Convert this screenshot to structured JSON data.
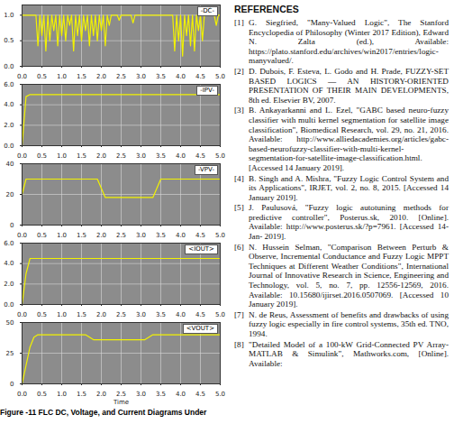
{
  "chart_data": [
    {
      "type": "line",
      "x": [
        0,
        0.05,
        0.1,
        0.15,
        0.2,
        0.25,
        0.3,
        0.35,
        0.4,
        0.45,
        0.5,
        0.55,
        0.6,
        0.65,
        0.7,
        0.75,
        0.8,
        0.85,
        0.9,
        0.95,
        1,
        1.05,
        1.1,
        1.15,
        1.2,
        1.25,
        1.3,
        1.35,
        1.4,
        1.45,
        1.5,
        1.55,
        1.6,
        1.65,
        1.7,
        1.75,
        1.8,
        1.85,
        1.9,
        1.95,
        2,
        2.05,
        2.1,
        2.15,
        2.2,
        2.25,
        2.3,
        2.35,
        2.4,
        2.45,
        2.5,
        2.55,
        2.6,
        2.65,
        2.7,
        2.75,
        2.8,
        2.85,
        2.9,
        2.95,
        3,
        3.05,
        3.1,
        3.15,
        3.2,
        3.25,
        3.3,
        3.35,
        3.4,
        3.45,
        3.5,
        3.55,
        3.6,
        3.65,
        3.7,
        3.75,
        3.8,
        3.85,
        3.9,
        3.95,
        4,
        4.05,
        4.1,
        4.15,
        4.2,
        4.25,
        4.3,
        4.35,
        4.4,
        4.45,
        4.5,
        4.55,
        4.6,
        4.65,
        4.7,
        4.75,
        4.8,
        4.85,
        4.9,
        4.95,
        5
      ],
      "series": [
        {
          "name": "-DC-",
          "color": "#f2f200",
          "values": [
            1,
            1,
            1,
            1,
            1,
            1,
            1,
            1,
            0.4,
            1,
            0.6,
            1,
            0.3,
            1,
            0.5,
            1,
            0.7,
            1,
            0.4,
            1,
            0.6,
            1,
            0.5,
            1,
            0.8,
            1,
            0.3,
            1,
            0.6,
            1,
            0.5,
            1,
            0.7,
            1,
            0.4,
            1,
            0.6,
            1,
            0.5,
            1,
            0.7,
            1,
            0.4,
            1,
            0.8,
            1,
            1,
            1,
            1,
            0.9,
            1,
            1,
            1,
            1,
            1,
            1,
            0.85,
            1,
            1,
            1,
            1,
            1,
            1,
            1,
            1,
            1,
            1,
            1,
            1,
            1,
            1,
            1,
            1,
            1,
            1,
            1,
            1,
            0.3,
            1,
            0.5,
            1,
            0.2,
            1,
            0.6,
            1,
            0.4,
            1,
            0.3,
            1,
            0.7,
            1,
            0.5,
            1,
            1,
            1,
            1,
            1,
            1,
            0.8,
            1,
            1
          ]
        }
      ],
      "xlim": [
        0,
        5
      ],
      "xticks": [
        0,
        0.5,
        1,
        1.5,
        2,
        2.5,
        3,
        3.5,
        4,
        4.5,
        5
      ],
      "ylim": [
        0,
        1.2
      ],
      "yticks": [
        0,
        0.5,
        1
      ],
      "grid": true
    },
    {
      "type": "line",
      "x": [
        0,
        0.1,
        0.2,
        0.3,
        0.4,
        0.5,
        0.6,
        0.7,
        0.8,
        0.9,
        1,
        1.1,
        1.2,
        1.3,
        1.4,
        1.5,
        1.6,
        1.7,
        1.8,
        1.9,
        2,
        2.1,
        2.2,
        2.3,
        2.4,
        2.5,
        2.6,
        2.7,
        2.8,
        2.9,
        3,
        3.1,
        3.2,
        3.3,
        3.4,
        3.5,
        3.6,
        3.7,
        3.8,
        3.9,
        4,
        4.1,
        4.2,
        4.3,
        4.4,
        4.5,
        4.6,
        4.7,
        4.8,
        4.9,
        5
      ],
      "series": [
        {
          "name": "-IPV-",
          "color": "#f2f200",
          "values": [
            0,
            4.8,
            5,
            5,
            5,
            5,
            5,
            5,
            5,
            5,
            5,
            5,
            5,
            5,
            5,
            5,
            5,
            5,
            5,
            5,
            5,
            5,
            5,
            5,
            5,
            5,
            5,
            5,
            5,
            5,
            5,
            5,
            5,
            5,
            5,
            5,
            5,
            5,
            5,
            5,
            5,
            5,
            5,
            5,
            5,
            5,
            5,
            5,
            5,
            5,
            5
          ]
        }
      ],
      "xlim": [
        0,
        5
      ],
      "xticks": [
        0,
        0.5,
        1,
        1.5,
        2,
        2.5,
        3,
        3.5,
        4,
        4.5,
        5
      ],
      "ylim": [
        0,
        6
      ],
      "yticks": [
        0,
        2,
        4,
        6
      ],
      "grid": true
    },
    {
      "type": "line",
      "x": [
        0,
        0.1,
        0.2,
        0.3,
        0.4,
        0.5,
        0.6,
        0.7,
        0.8,
        0.9,
        1,
        1.1,
        1.2,
        1.3,
        1.4,
        1.5,
        1.6,
        1.7,
        1.8,
        1.9,
        2,
        2.1,
        2.2,
        2.3,
        2.4,
        2.5,
        2.6,
        2.7,
        2.8,
        2.9,
        3,
        3.1,
        3.2,
        3.3,
        3.4,
        3.5,
        3.6,
        3.7,
        3.8,
        3.9,
        4,
        4.1,
        4.2,
        4.3,
        4.4,
        4.5,
        4.6,
        4.7,
        4.8,
        4.9,
        5
      ],
      "series": [
        {
          "name": "-VPV-",
          "color": "#f2f200",
          "values": [
            20,
            30,
            30,
            30,
            30,
            30,
            30,
            30,
            30,
            30,
            30,
            30,
            30,
            30,
            30,
            30,
            30,
            30,
            30,
            30,
            24,
            18,
            18,
            18,
            18,
            18,
            18,
            18,
            18,
            18,
            18,
            18,
            18,
            18,
            24,
            30,
            30,
            30,
            30,
            30,
            30,
            30,
            30,
            30,
            30,
            30,
            30,
            30,
            30,
            30,
            30
          ]
        }
      ],
      "xlim": [
        0,
        5
      ],
      "xticks": [
        0,
        0.5,
        1,
        1.5,
        2,
        2.5,
        3,
        3.5,
        4,
        4.5,
        5
      ],
      "ylim": [
        0,
        40
      ],
      "yticks": [
        0,
        20,
        40
      ],
      "grid": true
    },
    {
      "type": "line",
      "x": [
        0,
        0.1,
        0.2,
        0.3,
        0.4,
        0.5,
        0.6,
        0.7,
        0.8,
        0.9,
        1,
        1.1,
        1.2,
        1.3,
        1.4,
        1.5,
        1.6,
        1.7,
        1.8,
        1.9,
        2,
        2.1,
        2.2,
        2.3,
        2.4,
        2.5,
        2.6,
        2.7,
        2.8,
        2.9,
        3,
        3.1,
        3.2,
        3.3,
        3.4,
        3.5,
        3.6,
        3.7,
        3.8,
        3.9,
        4,
        4.1,
        4.2,
        4.3,
        4.4,
        4.5,
        4.6,
        4.7,
        4.8,
        4.9,
        5
      ],
      "series": [
        {
          "name": "<IOUT>",
          "color": "#f2f200",
          "values": [
            0,
            3,
            4.5,
            4.5,
            4.5,
            4.5,
            4.5,
            4.5,
            4.5,
            4.5,
            4.5,
            4.5,
            4.5,
            4.5,
            4.5,
            4.5,
            4.5,
            4.5,
            4.5,
            4.5,
            4.5,
            4.5,
            4.5,
            4.5,
            4.5,
            4.5,
            4.5,
            4.5,
            4.5,
            4.5,
            4.5,
            4.5,
            4.5,
            4.5,
            4.5,
            4.5,
            4.5,
            4.5,
            4.5,
            4.5,
            4.5,
            4.5,
            4.5,
            4.5,
            4.5,
            4.5,
            4.5,
            4.5,
            4.5,
            4.5,
            4.5
          ]
        }
      ],
      "xlim": [
        0,
        5
      ],
      "xticks": [
        0,
        0.5,
        1,
        1.5,
        2,
        2.5,
        3,
        3.5,
        4,
        4.5,
        5
      ],
      "ylim": [
        0,
        6
      ],
      "yticks": [
        0,
        2,
        4,
        6
      ],
      "grid": true
    },
    {
      "type": "line",
      "x": [
        0,
        0.1,
        0.2,
        0.3,
        0.4,
        0.5,
        0.6,
        0.7,
        0.8,
        0.9,
        1,
        1.1,
        1.2,
        1.3,
        1.4,
        1.5,
        1.6,
        1.7,
        1.8,
        1.9,
        2,
        2.1,
        2.2,
        2.3,
        2.4,
        2.5,
        2.6,
        2.7,
        2.8,
        2.9,
        3,
        3.1,
        3.2,
        3.3,
        3.4,
        3.5,
        3.6,
        3.7,
        3.8,
        3.9,
        4,
        4.1,
        4.2,
        4.3,
        4.4,
        4.5,
        4.6,
        4.7,
        4.8,
        4.9,
        5
      ],
      "series": [
        {
          "name": "<VOUT>",
          "color": "#f2f200",
          "values": [
            0,
            15,
            30,
            38,
            40,
            40,
            40,
            40,
            40,
            40,
            40,
            40,
            40,
            40,
            40,
            40,
            40,
            38,
            36,
            36,
            36,
            36,
            36,
            36,
            36,
            36,
            36,
            36,
            36,
            36,
            36,
            36,
            38,
            40,
            40,
            40,
            40,
            40,
            40,
            40,
            40,
            40,
            40,
            40,
            40,
            40,
            40,
            40,
            40,
            40,
            40
          ]
        }
      ],
      "xlim": [
        0,
        5
      ],
      "xticks": [
        0,
        0.5,
        1,
        1.5,
        2,
        2.5,
        3,
        3.5,
        4,
        4.5,
        5
      ],
      "ylim": [
        0,
        50
      ],
      "yticks": [
        0,
        25,
        50
      ],
      "grid": true,
      "x_label": "Time"
    }
  ],
  "caption": "Figure -11 FLC DC, Voltage, and Current Diagrams Under",
  "references": {
    "heading": "REFERENCES",
    "items": [
      {
        "num": "[1]",
        "text": "G. Siegfried, \"Many-Valued Logic\", The Stanford Encyclopedia of Philosophy (Winter 2017 Edition), Edward N. Zalta (ed.), Available: https://plato.stanford.edu/archives/win2017/entries/logic-manyvalued/."
      },
      {
        "num": "[2]",
        "text": "D. Dubois, F. Esteva, L. Godo and H. Prade, FUZZY-SET BASED LOGICS — AN HISTORY-ORIENTED PRESENTATION OF THEIR MAIN DEVELOPMENTS, 8th ed. Elsevier BV, 2007."
      },
      {
        "num": "[3]",
        "text": "B. Ankayarkanni and L. Ezel, \"GABC based neuro-fuzzy classifier with multi kernel segmentation for satellite image classification\", Biomedical Research, vol. 29, no. 21, 2016. Available: http://www.alliedacademies.org/articles/gabc-based-neurofuzzy-classifier-with-multi-kernel-segmentation-for-satellite-image-classification.html. [Accessed 14 January 2019]."
      },
      {
        "num": "[4]",
        "text": "B. Singh and A. Mishra, \"Fuzzy Logic Control System and its Applications\", IRJET, vol. 2, no. 8, 2015. [Accessed 14 January 2019]."
      },
      {
        "num": "[5]",
        "text": "J. Paulusová, \"Fuzzy logic autotuning methods for predictive controller\", Posterus.sk, 2010. [Online]. Available: http://www.posterus.sk/?p=7961. [Accessed 14- Jan- 2019]."
      },
      {
        "num": "[6]",
        "text": "N. Hussein Selman, \"Comparison Between Perturb & Observe, Incremental Conductance and Fuzzy Logic MPPT Techniques at Different Weather Conditions\", International Journal of Innovative Research in Science, Engineering and Technology, vol. 5, no. 7, pp. 12556-12569, 2016. Available: 10.15680/ijirset.2016.0507069. [Accessed 10 January 2019]."
      },
      {
        "num": "[7]",
        "text": "N. de Reus, Assessment of benefits and drawbacks of using fuzzy logic especially in fire control systems, 35th ed. TNO, 1994."
      },
      {
        "num": "[8]",
        "text": "\"Detailed Model of a 100-kW Grid-Connected PV Array- MATLAB & Simulink\", Mathworks.com, [Online]. Available:"
      }
    ]
  }
}
